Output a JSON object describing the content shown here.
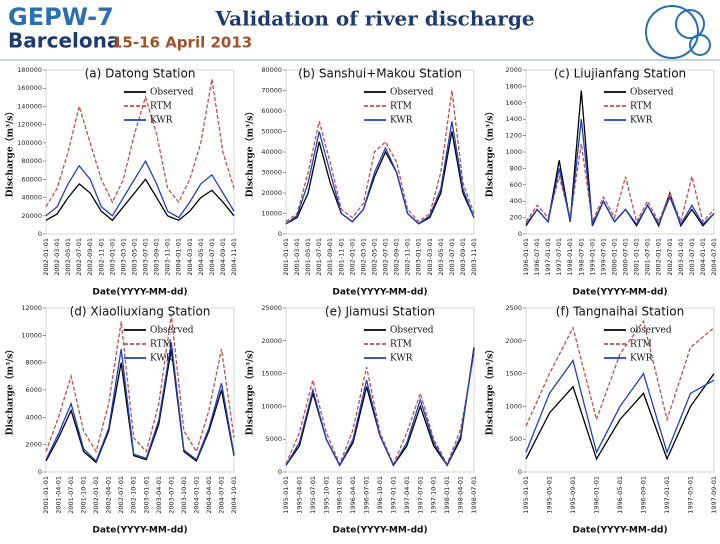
{
  "header": {
    "event": "GEPW-7",
    "city": "Barcelona",
    "dates": "15-16 April 2013",
    "title": "Validation of river discharge"
  },
  "chart_data": [
    {
      "type": "line",
      "title": "(a) Datong Station",
      "x_label": "Date(YYYY-MM-dd)",
      "y_label": "Discharge（m³/s）",
      "categories": [
        "2002-01-01",
        "2002-03-01",
        "2002-05-01",
        "2002-07-01",
        "2002-09-01",
        "2002-11-01",
        "2003-01-01",
        "2003-03-01",
        "2003-05-01",
        "2003-07-01",
        "2003-09-01",
        "2003-11-01",
        "2004-01-01",
        "2004-03-01",
        "2004-05-01",
        "2004-07-01",
        "2004-09-01",
        "2004-11-01"
      ],
      "series": [
        {
          "name": "Observed",
          "color": "#000000",
          "dash": false,
          "values": [
            15000,
            22000,
            40000,
            55000,
            45000,
            25000,
            15000,
            30000,
            45000,
            60000,
            40000,
            20000,
            15000,
            25000,
            40000,
            48000,
            35000,
            20000
          ]
        },
        {
          "name": "RTM",
          "color": "#c0504d",
          "dash": true,
          "values": [
            30000,
            50000,
            90000,
            140000,
            100000,
            60000,
            35000,
            60000,
            110000,
            150000,
            110000,
            50000,
            35000,
            60000,
            100000,
            170000,
            90000,
            50000
          ]
        },
        {
          "name": "KWR",
          "color": "#1f3fbf",
          "dash": false,
          "values": [
            20000,
            30000,
            55000,
            75000,
            60000,
            30000,
            20000,
            40000,
            60000,
            80000,
            55000,
            25000,
            18000,
            35000,
            55000,
            65000,
            45000,
            25000
          ]
        }
      ],
      "ylim": [
        0,
        180000
      ],
      "yticks": [
        0,
        20000,
        40000,
        60000,
        80000,
        100000,
        120000,
        140000,
        160000,
        180000
      ]
    },
    {
      "type": "line",
      "title": "(b) Sanshui+Makou Station",
      "x_label": "Date(YYYY-MM-dd)",
      "y_label": "Discharge（m³/s）",
      "categories": [
        "2001-01-01",
        "2001-03-01",
        "2001-05-01",
        "2001-07-01",
        "2001-09-01",
        "2001-11-01",
        "2002-01-01",
        "2002-03-01",
        "2002-05-01",
        "2002-07-01",
        "2002-09-01",
        "2002-11-01",
        "2003-01-01",
        "2003-03-01",
        "2003-05-01",
        "2003-07-01",
        "2003-09-01",
        "2003-11-01"
      ],
      "series": [
        {
          "name": "Observed",
          "color": "#000000",
          "dash": false,
          "values": [
            5000,
            8000,
            20000,
            45000,
            25000,
            10000,
            6000,
            12000,
            28000,
            40000,
            30000,
            10000,
            5000,
            8000,
            20000,
            50000,
            20000,
            8000
          ]
        },
        {
          "name": "RTM",
          "color": "#c0504d",
          "dash": true,
          "values": [
            6000,
            10000,
            30000,
            55000,
            35000,
            12000,
            8000,
            15000,
            40000,
            45000,
            35000,
            12000,
            6000,
            10000,
            30000,
            70000,
            25000,
            10000
          ]
        },
        {
          "name": "KWR",
          "color": "#1f3fbf",
          "dash": false,
          "values": [
            5000,
            9000,
            25000,
            50000,
            30000,
            10000,
            6000,
            12000,
            30000,
            42000,
            30000,
            10000,
            5000,
            9000,
            22000,
            55000,
            22000,
            8000
          ]
        }
      ],
      "ylim": [
        0,
        80000
      ],
      "yticks": [
        0,
        10000,
        20000,
        30000,
        40000,
        50000,
        60000,
        70000,
        80000
      ]
    },
    {
      "type": "line",
      "title": "(c) Liujianfang Station",
      "x_label": "Date(YYYY-MM-dd)",
      "y_label": "Discharge（m³/s）",
      "categories": [
        "1996-01-01",
        "1996-07-01",
        "1997-01-01",
        "1997-07-01",
        "1998-01-01",
        "1998-07-01",
        "1999-01-01",
        "1999-07-01",
        "2000-01-01",
        "2000-07-01",
        "2001-01-01",
        "2001-07-01",
        "2002-01-01",
        "2002-07-01",
        "2003-01-01",
        "2003-07-01",
        "2004-01-01",
        "2004-07-01"
      ],
      "series": [
        {
          "name": "Observed",
          "color": "#000000",
          "dash": false,
          "values": [
            100,
            300,
            150,
            900,
            150,
            1750,
            100,
            400,
            150,
            300,
            100,
            350,
            100,
            500,
            100,
            300,
            100,
            250
          ]
        },
        {
          "name": "RTM",
          "color": "#c0504d",
          "dash": true,
          "values": [
            150,
            350,
            200,
            700,
            200,
            1100,
            150,
            450,
            200,
            700,
            150,
            400,
            150,
            500,
            150,
            700,
            150,
            300
          ]
        },
        {
          "name": "KWR",
          "color": "#1f3fbf",
          "dash": false,
          "values": [
            120,
            300,
            150,
            800,
            150,
            1400,
            120,
            400,
            150,
            300,
            120,
            350,
            120,
            450,
            120,
            350,
            120,
            250
          ]
        }
      ],
      "ylim": [
        0,
        2000
      ],
      "yticks": [
        0,
        200,
        400,
        600,
        800,
        1000,
        1200,
        1400,
        1600,
        1800,
        2000
      ]
    },
    {
      "type": "line",
      "title": "(d) Xiaoliuxiang Station",
      "x_label": "Date(YYYY-MM-dd)",
      "y_label": "Discharge（m³/s）",
      "categories": [
        "2001-01-01",
        "2001-04-01",
        "2001-07-01",
        "2001-10-01",
        "2002-01-01",
        "2002-04-01",
        "2002-07-01",
        "2002-10-01",
        "2003-01-01",
        "2003-04-01",
        "2003-07-01",
        "2003-10-01",
        "2004-01-01",
        "2004-04-01",
        "2004-07-01",
        "2004-10-01"
      ],
      "series": [
        {
          "name": "Observed",
          "color": "#000000",
          "dash": false,
          "values": [
            800,
            2500,
            4500,
            1500,
            700,
            3000,
            8000,
            1200,
            900,
            3500,
            9000,
            1500,
            800,
            3000,
            6000,
            1200
          ]
        },
        {
          "name": "RTM",
          "color": "#c0504d",
          "dash": true,
          "values": [
            1500,
            4000,
            7000,
            3000,
            1500,
            5000,
            11000,
            2500,
            1500,
            5000,
            11500,
            3000,
            1500,
            4500,
            9000,
            2500
          ]
        },
        {
          "name": "KWR",
          "color": "#1f3fbf",
          "dash": false,
          "values": [
            900,
            2800,
            5000,
            1700,
            800,
            3200,
            9000,
            1300,
            1000,
            3800,
            9500,
            1600,
            900,
            3200,
            6500,
            1300
          ]
        }
      ],
      "ylim": [
        0,
        12000
      ],
      "yticks": [
        0,
        2000,
        4000,
        6000,
        8000,
        10000,
        12000
      ]
    },
    {
      "type": "line",
      "title": "(e) Jiamusi Station",
      "x_label": "Date(YYYY-MM-dd)",
      "y_label": "Discharge（m³/s）",
      "categories": [
        "1995-01-01",
        "1995-04-01",
        "1995-07-01",
        "1995-10-01",
        "1996-01-01",
        "1996-04-01",
        "1996-07-01",
        "1996-10-01",
        "1997-01-01",
        "1997-04-01",
        "1997-07-01",
        "1997-10-01",
        "1998-01-01",
        "1998-04-01",
        "1998-07-01"
      ],
      "series": [
        {
          "name": "Observed",
          "color": "#000000",
          "dash": false,
          "values": [
            1000,
            4000,
            12000,
            5000,
            1000,
            4500,
            13000,
            5500,
            1000,
            4000,
            10000,
            4000,
            1000,
            5000,
            19000
          ]
        },
        {
          "name": "RTM",
          "color": "#c0504d",
          "dash": true,
          "values": [
            1200,
            6000,
            14000,
            6000,
            1200,
            6500,
            16000,
            6000,
            1200,
            6000,
            12000,
            5000,
            1200,
            6500,
            18000
          ]
        },
        {
          "name": "KWR",
          "color": "#1f3fbf",
          "dash": false,
          "values": [
            1000,
            4500,
            12500,
            5000,
            1000,
            5000,
            14000,
            5500,
            1000,
            4500,
            11000,
            4500,
            1000,
            5500,
            18500
          ]
        }
      ],
      "ylim": [
        0,
        25000
      ],
      "yticks": [
        0,
        5000,
        10000,
        15000,
        20000,
        25000
      ]
    },
    {
      "type": "line",
      "title": "(f) Tangnaihai Station",
      "x_label": "Date(YYYY-MM-dd)",
      "y_label": "Discharge（m³/s）",
      "categories": [
        "1995-01-01",
        "1995-05-01",
        "1995-09-01",
        "1996-01-01",
        "1996-05-01",
        "1996-09-01",
        "1997-01-01",
        "1997-05-01",
        "1997-09-01"
      ],
      "series": [
        {
          "name": "observed",
          "color": "#000000",
          "dash": false,
          "values": [
            200,
            900,
            1300,
            200,
            800,
            1200,
            200,
            1000,
            1500
          ]
        },
        {
          "name": "RTM",
          "color": "#c0504d",
          "dash": true,
          "values": [
            700,
            1500,
            2200,
            800,
            1800,
            2300,
            800,
            1900,
            2200
          ]
        },
        {
          "name": "KWR",
          "color": "#1f3fbf",
          "dash": false,
          "values": [
            300,
            1200,
            1700,
            300,
            1000,
            1500,
            300,
            1200,
            1400
          ]
        }
      ],
      "ylim": [
        0,
        2500
      ],
      "yticks": [
        0,
        500,
        1000,
        1500,
        2000,
        2500
      ]
    }
  ]
}
